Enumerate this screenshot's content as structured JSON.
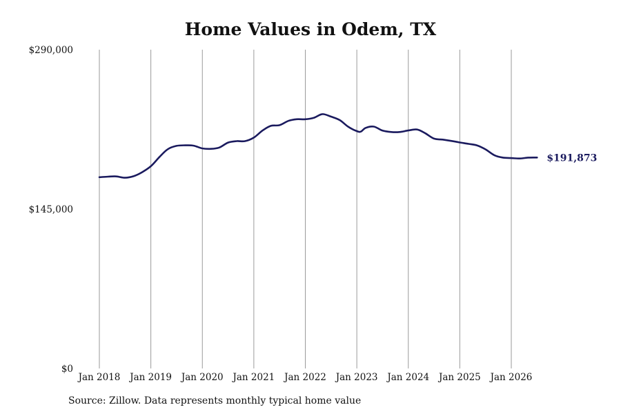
{
  "chart_data": {
    "type": "line",
    "title": "Home Values in Odem, TX",
    "xlabel": "",
    "ylabel": "",
    "ylim": [
      0,
      290000
    ],
    "y_ticks": [
      "$290,000",
      "$145,000",
      "$0"
    ],
    "y_tick_values": [
      290000,
      145000,
      0
    ],
    "x_ticks": [
      "Jan 2018",
      "Jan 2019",
      "Jan 2020",
      "Jan 2021",
      "Jan 2022",
      "Jan 2023",
      "Jan 2024",
      "Jan 2025",
      "Jan 2026"
    ],
    "x_tick_values": [
      2018,
      2019,
      2020,
      2021,
      2022,
      2023,
      2024,
      2025,
      2026
    ],
    "xlim": [
      2018,
      2026.5
    ],
    "grid": "vertical",
    "line_color": "#1a1a5e",
    "end_label": "$191,873",
    "series": [
      {
        "x": [
          2018.0,
          2018.17,
          2018.33,
          2018.5,
          2018.67,
          2018.83,
          2019.0,
          2019.17,
          2019.33,
          2019.5,
          2019.67,
          2019.83,
          2020.0,
          2020.17,
          2020.33,
          2020.5,
          2020.67,
          2020.83,
          2021.0,
          2021.17,
          2021.33,
          2021.5,
          2021.67,
          2021.83,
          2022.0,
          2022.17,
          2022.33,
          2022.5,
          2022.67,
          2022.83,
          2023.0,
          2023.08,
          2023.17,
          2023.33,
          2023.5,
          2023.67,
          2023.83,
          2024.0,
          2024.17,
          2024.33,
          2024.5,
          2024.67,
          2024.83,
          2025.0,
          2025.17,
          2025.33,
          2025.5,
          2025.67,
          2025.83,
          2026.0,
          2026.17,
          2026.33,
          2026.5
        ],
        "y": [
          174000,
          174500,
          174700,
          173500,
          175000,
          178500,
          184000,
          192500,
          199500,
          202500,
          203000,
          202700,
          200200,
          199800,
          201000,
          205500,
          206800,
          206800,
          210000,
          216500,
          220700,
          221300,
          225200,
          226700,
          226700,
          228100,
          231400,
          229100,
          225900,
          220000,
          215900,
          215500,
          218800,
          220000,
          216400,
          215100,
          215100,
          216500,
          217400,
          213900,
          209100,
          208200,
          207000,
          205600,
          204300,
          203000,
          199300,
          194000,
          191900,
          191400,
          191000,
          191800,
          191873
        ]
      }
    ]
  },
  "source_text": "Source: Zillow. Data represents monthly typical home value"
}
